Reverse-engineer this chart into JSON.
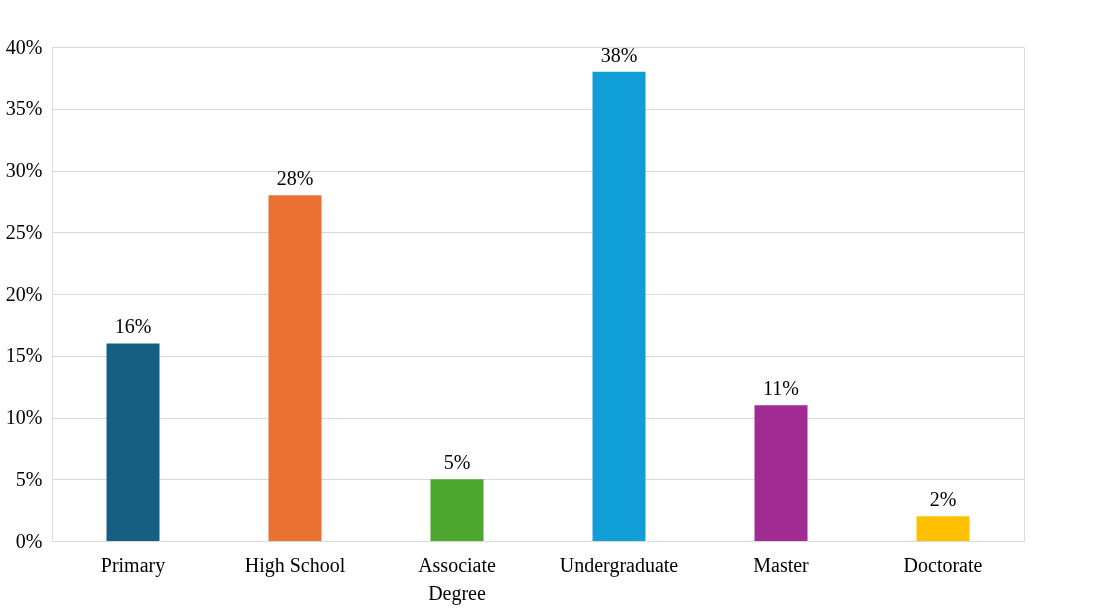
{
  "chart_data": {
    "type": "bar",
    "categories": [
      "Primary",
      "High School",
      "Associate Degree",
      "Undergraduate",
      "Master",
      "Doctorate"
    ],
    "values": [
      16,
      28,
      5,
      38,
      11,
      2
    ],
    "colors": [
      "#156082",
      "#e97132",
      "#4ea72e",
      "#0f9ed5",
      "#a02b93",
      "#ffc000"
    ],
    "value_labels": [
      "16%",
      "28%",
      "5%",
      "38%",
      "11%",
      "2%"
    ],
    "ylim": [
      0,
      40
    ],
    "yticks": [
      {
        "value": 0,
        "label": "0%"
      },
      {
        "value": 5,
        "label": "5%"
      },
      {
        "value": 10,
        "label": "10%"
      },
      {
        "value": 15,
        "label": "15%"
      },
      {
        "value": 20,
        "label": "20%"
      },
      {
        "value": 25,
        "label": "25%"
      },
      {
        "value": 30,
        "label": "30%"
      },
      {
        "value": 35,
        "label": "35%"
      },
      {
        "value": 40,
        "label": "40%"
      }
    ],
    "grid": "y"
  }
}
